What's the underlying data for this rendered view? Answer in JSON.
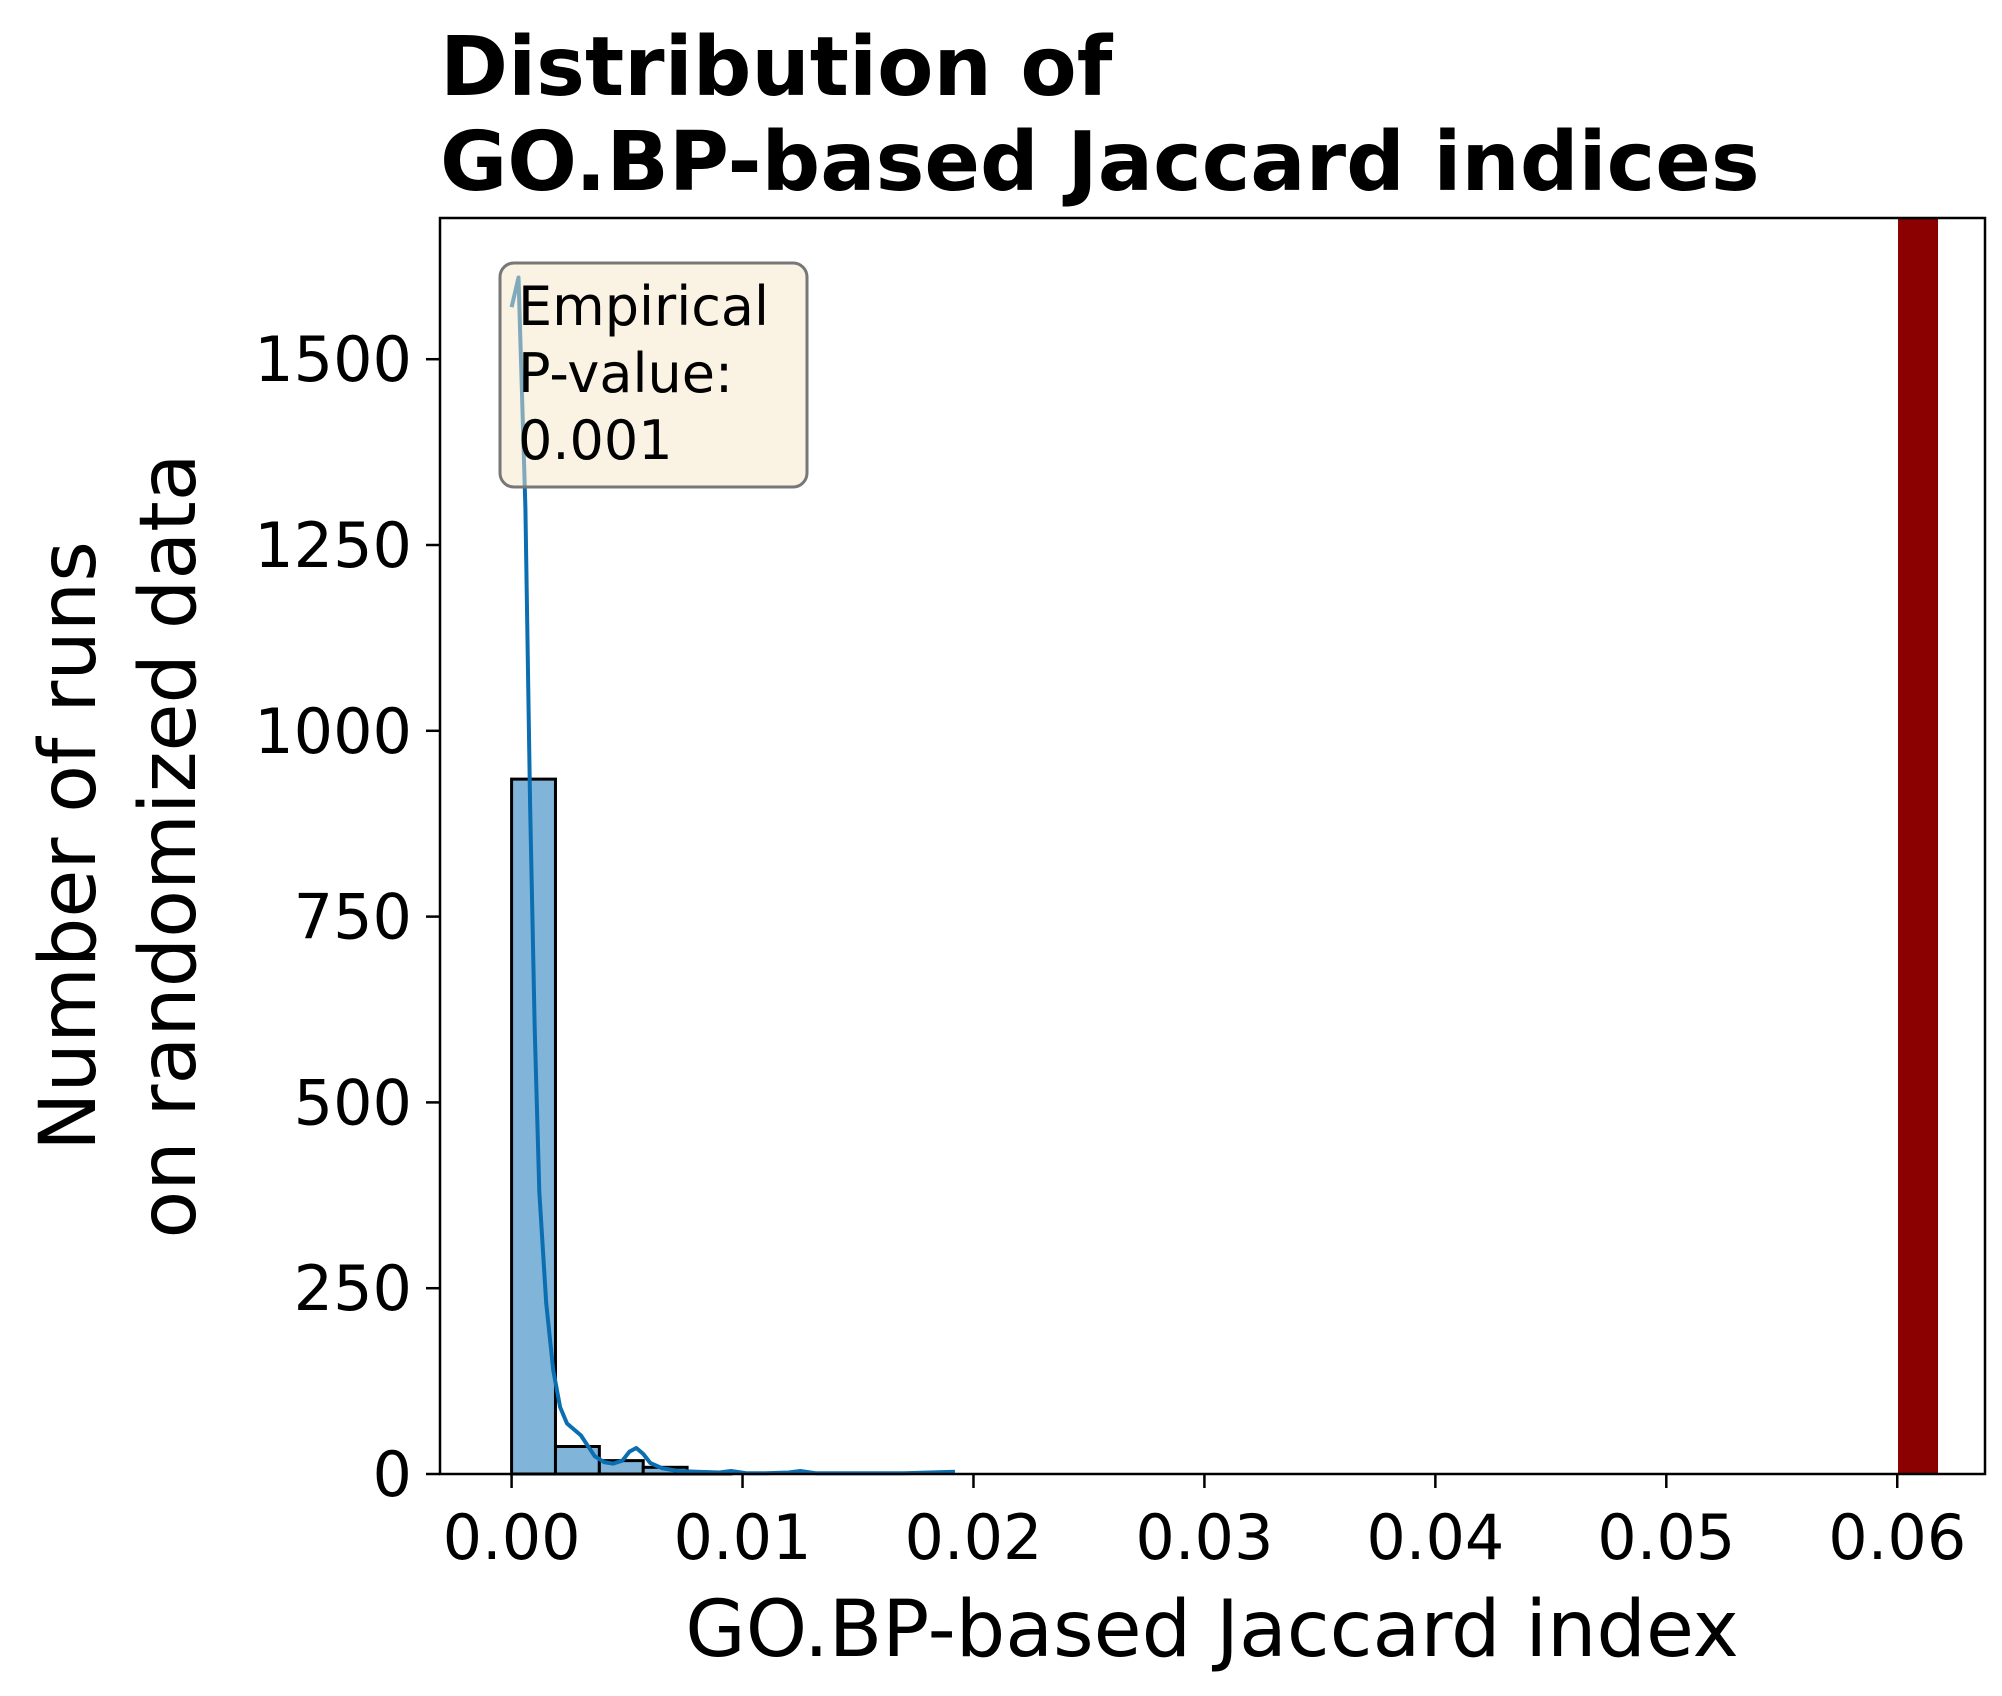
{
  "chart_data": {
    "type": "bar",
    "title_lines": [
      "Distribution of",
      "GO.BP-based Jaccard indices"
    ],
    "xlabel": "GO.BP-based Jaccard index",
    "ylabel_lines": [
      "Number of runs",
      "on randomized data"
    ],
    "xlim": [
      -0.0031,
      0.0638
    ],
    "ylim": [
      0,
      1690
    ],
    "xticks": [
      0.0,
      0.01,
      0.02,
      0.03,
      0.04,
      0.05,
      0.06
    ],
    "xtick_labels": [
      "0.00",
      "0.01",
      "0.02",
      "0.03",
      "0.04",
      "0.05",
      "0.06"
    ],
    "yticks": [
      0,
      250,
      500,
      750,
      1000,
      1250,
      1500
    ],
    "ytick_labels": [
      "0",
      "250",
      "500",
      "750",
      "1000",
      "1250",
      "1500"
    ],
    "bin_width": 0.0019,
    "bins": [
      {
        "x0": 0.0,
        "count": 935
      },
      {
        "x0": 0.0019,
        "count": 37
      },
      {
        "x0": 0.0038,
        "count": 18
      },
      {
        "x0": 0.0057,
        "count": 9
      },
      {
        "x0": 0.0076,
        "count": 1
      }
    ],
    "kde": [
      [
        0.0,
        1570
      ],
      [
        0.0003,
        1610
      ],
      [
        0.0006,
        1300
      ],
      [
        0.0008,
        900
      ],
      [
        0.001,
        600
      ],
      [
        0.0012,
        380
      ],
      [
        0.0015,
        230
      ],
      [
        0.0018,
        140
      ],
      [
        0.0021,
        90
      ],
      [
        0.0024,
        68
      ],
      [
        0.0027,
        60
      ],
      [
        0.003,
        52
      ],
      [
        0.0033,
        38
      ],
      [
        0.0036,
        24
      ],
      [
        0.004,
        16
      ],
      [
        0.0044,
        14
      ],
      [
        0.0048,
        18
      ],
      [
        0.0051,
        30
      ],
      [
        0.0054,
        35
      ],
      [
        0.0057,
        27
      ],
      [
        0.006,
        15
      ],
      [
        0.0065,
        8
      ],
      [
        0.0072,
        4
      ],
      [
        0.008,
        3
      ],
      [
        0.009,
        2
      ],
      [
        0.0095,
        4
      ],
      [
        0.0102,
        1
      ],
      [
        0.011,
        1
      ],
      [
        0.012,
        2
      ],
      [
        0.0125,
        4
      ],
      [
        0.0132,
        1
      ],
      [
        0.015,
        1
      ],
      [
        0.017,
        1
      ],
      [
        0.0192,
        3
      ]
    ],
    "observed_value": 0.0609,
    "annotation_lines": [
      "Empirical",
      "P-value:",
      "0.001"
    ],
    "colors": {
      "bar_fill": "#80b5d9",
      "bar_edge": "#000000",
      "kde_line": "#0b6eb0",
      "observed_line": "#8b0000",
      "annotation_fill": "#f5e6c8",
      "annotation_edge": "#777777"
    }
  }
}
